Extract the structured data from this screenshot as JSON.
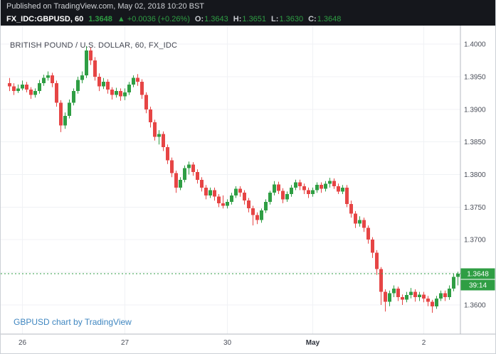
{
  "colors": {
    "header_bg": "#15171c",
    "up": "#2f9e44",
    "down": "#e64545",
    "badge_green": "#2f9e44",
    "link_blue": "#3f86c0",
    "axis_text": "#4a4e59",
    "grid": "#f0f2f5",
    "axis_line": "#b5b9c0",
    "title_text": "#434651"
  },
  "published_bar": {
    "text": "Published on TradingView.com, May 02, 2018 10:20 BST"
  },
  "legend": {
    "symbol": "FX_IDC:GBPUSD, 60",
    "last_price": "1.3648",
    "arrow": "▲",
    "change": "+0.0036 (+0.26%)",
    "ohlc": [
      {
        "label": "O:",
        "value": "1.3643"
      },
      {
        "label": "H:",
        "value": "1.3651"
      },
      {
        "label": "L:",
        "value": "1.3630"
      },
      {
        "label": "C:",
        "value": "1.3648"
      }
    ]
  },
  "chart_title": "BRITISH POUND / U.S. DOLLAR, 60, FX_IDC",
  "attribution": "GBPUSD chart by TradingView",
  "price_badge": {
    "value": "1.3648",
    "countdown": "39:14",
    "price": 1.3648
  },
  "chart_data": {
    "type": "candlestick",
    "title": "BRITISH POUND / U.S. DOLLAR, 60, FX_IDC",
    "symbol": "GBPUSD",
    "exchange": "FX_IDC",
    "interval_minutes": 60,
    "last_price": 1.3648,
    "y_axis": {
      "ticks": [
        1.4,
        1.395,
        1.39,
        1.385,
        1.38,
        1.375,
        1.37,
        1.365,
        1.36
      ],
      "min": 1.3555,
      "max": 1.4015
    },
    "x_ticks": [
      {
        "index": 3,
        "label": "26",
        "bold": false
      },
      {
        "index": 27,
        "label": "27",
        "bold": false
      },
      {
        "index": 51,
        "label": "30",
        "bold": false
      },
      {
        "index": 71,
        "label": "May",
        "bold": true
      },
      {
        "index": 97,
        "label": "2",
        "bold": false
      }
    ],
    "candles_ohlc": [
      [
        1.394,
        1.3948,
        1.3928,
        1.3935
      ],
      [
        1.3935,
        1.394,
        1.3922,
        1.3928
      ],
      [
        1.3928,
        1.3938,
        1.3925,
        1.3932
      ],
      [
        1.3932,
        1.3944,
        1.3929,
        1.3938
      ],
      [
        1.3938,
        1.3942,
        1.3926,
        1.393
      ],
      [
        1.393,
        1.3934,
        1.3916,
        1.3922
      ],
      [
        1.3922,
        1.3932,
        1.3918,
        1.3928
      ],
      [
        1.3928,
        1.3945,
        1.3924,
        1.394
      ],
      [
        1.394,
        1.3953,
        1.3936,
        1.3948
      ],
      [
        1.3948,
        1.3958,
        1.3944,
        1.3952
      ],
      [
        1.3952,
        1.3956,
        1.3934,
        1.394
      ],
      [
        1.394,
        1.3944,
        1.3904,
        1.391
      ],
      [
        1.391,
        1.3914,
        1.3865,
        1.3875
      ],
      [
        1.3875,
        1.3895,
        1.387,
        1.389
      ],
      [
        1.389,
        1.3915,
        1.3886,
        1.391
      ],
      [
        1.391,
        1.3932,
        1.3906,
        1.3928
      ],
      [
        1.3928,
        1.395,
        1.3924,
        1.3945
      ],
      [
        1.3945,
        1.3958,
        1.394,
        1.3952
      ],
      [
        1.3952,
        1.3997,
        1.3948,
        1.399
      ],
      [
        1.399,
        1.3995,
        1.3968,
        1.3975
      ],
      [
        1.3975,
        1.398,
        1.3944,
        1.395
      ],
      [
        1.395,
        1.3955,
        1.3928,
        1.3935
      ],
      [
        1.3935,
        1.3948,
        1.3931,
        1.3942
      ],
      [
        1.3942,
        1.3946,
        1.3924,
        1.393
      ],
      [
        1.393,
        1.3934,
        1.3915,
        1.3922
      ],
      [
        1.3922,
        1.3933,
        1.3918,
        1.3928
      ],
      [
        1.3928,
        1.3932,
        1.3913,
        1.392
      ],
      [
        1.392,
        1.3932,
        1.3914,
        1.3926
      ],
      [
        1.3926,
        1.3942,
        1.3922,
        1.3938
      ],
      [
        1.3938,
        1.3952,
        1.3934,
        1.3948
      ],
      [
        1.3948,
        1.3954,
        1.3936,
        1.3942
      ],
      [
        1.3942,
        1.3946,
        1.3916,
        1.3922
      ],
      [
        1.3922,
        1.3926,
        1.3894,
        1.39
      ],
      [
        1.39,
        1.3904,
        1.3872,
        1.388
      ],
      [
        1.388,
        1.3884,
        1.3852,
        1.3858
      ],
      [
        1.3858,
        1.3868,
        1.3846,
        1.3862
      ],
      [
        1.3862,
        1.3866,
        1.3836,
        1.3842
      ],
      [
        1.3842,
        1.3846,
        1.3816,
        1.3822
      ],
      [
        1.3822,
        1.3826,
        1.3796,
        1.3802
      ],
      [
        1.3802,
        1.3806,
        1.3772,
        1.378
      ],
      [
        1.378,
        1.3796,
        1.3776,
        1.3792
      ],
      [
        1.3792,
        1.3814,
        1.3788,
        1.381
      ],
      [
        1.381,
        1.382,
        1.38,
        1.3815
      ],
      [
        1.3815,
        1.3819,
        1.3798,
        1.3804
      ],
      [
        1.3804,
        1.3808,
        1.3786,
        1.3792
      ],
      [
        1.3792,
        1.3796,
        1.3774,
        1.378
      ],
      [
        1.378,
        1.3784,
        1.3762,
        1.3768
      ],
      [
        1.3768,
        1.378,
        1.3764,
        1.3776
      ],
      [
        1.3776,
        1.378,
        1.376,
        1.3766
      ],
      [
        1.3766,
        1.377,
        1.375,
        1.3756
      ],
      [
        1.3756,
        1.3768,
        1.3748,
        1.3752
      ],
      [
        1.3752,
        1.3762,
        1.3748,
        1.3758
      ],
      [
        1.3758,
        1.3772,
        1.3754,
        1.3768
      ],
      [
        1.3768,
        1.3782,
        1.3764,
        1.3778
      ],
      [
        1.3778,
        1.3782,
        1.3766,
        1.3772
      ],
      [
        1.3772,
        1.3776,
        1.3754,
        1.376
      ],
      [
        1.376,
        1.3764,
        1.3742,
        1.3748
      ],
      [
        1.3748,
        1.3752,
        1.3722,
        1.3738
      ],
      [
        1.3738,
        1.3742,
        1.3724,
        1.373
      ],
      [
        1.373,
        1.3748,
        1.3726,
        1.3745
      ],
      [
        1.3745,
        1.3762,
        1.3741,
        1.3758
      ],
      [
        1.3758,
        1.3775,
        1.3754,
        1.3772
      ],
      [
        1.3772,
        1.379,
        1.3768,
        1.3785
      ],
      [
        1.3785,
        1.3789,
        1.377,
        1.3775
      ],
      [
        1.3775,
        1.3779,
        1.3756,
        1.3762
      ],
      [
        1.3762,
        1.3774,
        1.3758,
        1.377
      ],
      [
        1.377,
        1.3784,
        1.3766,
        1.378
      ],
      [
        1.378,
        1.3792,
        1.3776,
        1.3788
      ],
      [
        1.3788,
        1.3792,
        1.3776,
        1.3782
      ],
      [
        1.3782,
        1.3786,
        1.377,
        1.3776
      ],
      [
        1.3776,
        1.378,
        1.3764,
        1.377
      ],
      [
        1.377,
        1.378,
        1.3766,
        1.3776
      ],
      [
        1.3776,
        1.3788,
        1.3772,
        1.3784
      ],
      [
        1.3784,
        1.3788,
        1.3772,
        1.3778
      ],
      [
        1.3778,
        1.379,
        1.3774,
        1.3786
      ],
      [
        1.3786,
        1.3795,
        1.378,
        1.379
      ],
      [
        1.379,
        1.3794,
        1.3778,
        1.3782
      ],
      [
        1.3782,
        1.3786,
        1.377,
        1.3774
      ],
      [
        1.3774,
        1.3784,
        1.377,
        1.378
      ],
      [
        1.378,
        1.3784,
        1.375,
        1.3755
      ],
      [
        1.3755,
        1.376,
        1.3734,
        1.374
      ],
      [
        1.374,
        1.3744,
        1.3718,
        1.3725
      ],
      [
        1.3725,
        1.3736,
        1.372,
        1.373
      ],
      [
        1.373,
        1.3734,
        1.3712,
        1.3718
      ],
      [
        1.3718,
        1.3722,
        1.3694,
        1.37
      ],
      [
        1.37,
        1.3704,
        1.3672,
        1.368
      ],
      [
        1.368,
        1.3684,
        1.3646,
        1.3655
      ],
      [
        1.3655,
        1.3658,
        1.36,
        1.362
      ],
      [
        1.362,
        1.3624,
        1.359,
        1.3605
      ],
      [
        1.3605,
        1.3622,
        1.3598,
        1.3618
      ],
      [
        1.3618,
        1.363,
        1.3612,
        1.3625
      ],
      [
        1.3625,
        1.3628,
        1.3606,
        1.3612
      ],
      [
        1.3612,
        1.3616,
        1.36,
        1.3608
      ],
      [
        1.3608,
        1.362,
        1.3604,
        1.3615
      ],
      [
        1.3615,
        1.3626,
        1.361,
        1.362
      ],
      [
        1.362,
        1.3624,
        1.3605,
        1.3612
      ],
      [
        1.3612,
        1.362,
        1.3606,
        1.3616
      ],
      [
        1.3616,
        1.362,
        1.3604,
        1.361
      ],
      [
        1.361,
        1.3614,
        1.3598,
        1.3605
      ],
      [
        1.3605,
        1.3608,
        1.3588,
        1.3598
      ],
      [
        1.3598,
        1.3614,
        1.3594,
        1.361
      ],
      [
        1.361,
        1.3622,
        1.3606,
        1.3618
      ],
      [
        1.3618,
        1.3622,
        1.3606,
        1.3612
      ],
      [
        1.3612,
        1.363,
        1.3608,
        1.3625
      ],
      [
        1.3625,
        1.3648,
        1.3621,
        1.3643
      ],
      [
        1.3643,
        1.3651,
        1.363,
        1.3648
      ]
    ]
  }
}
